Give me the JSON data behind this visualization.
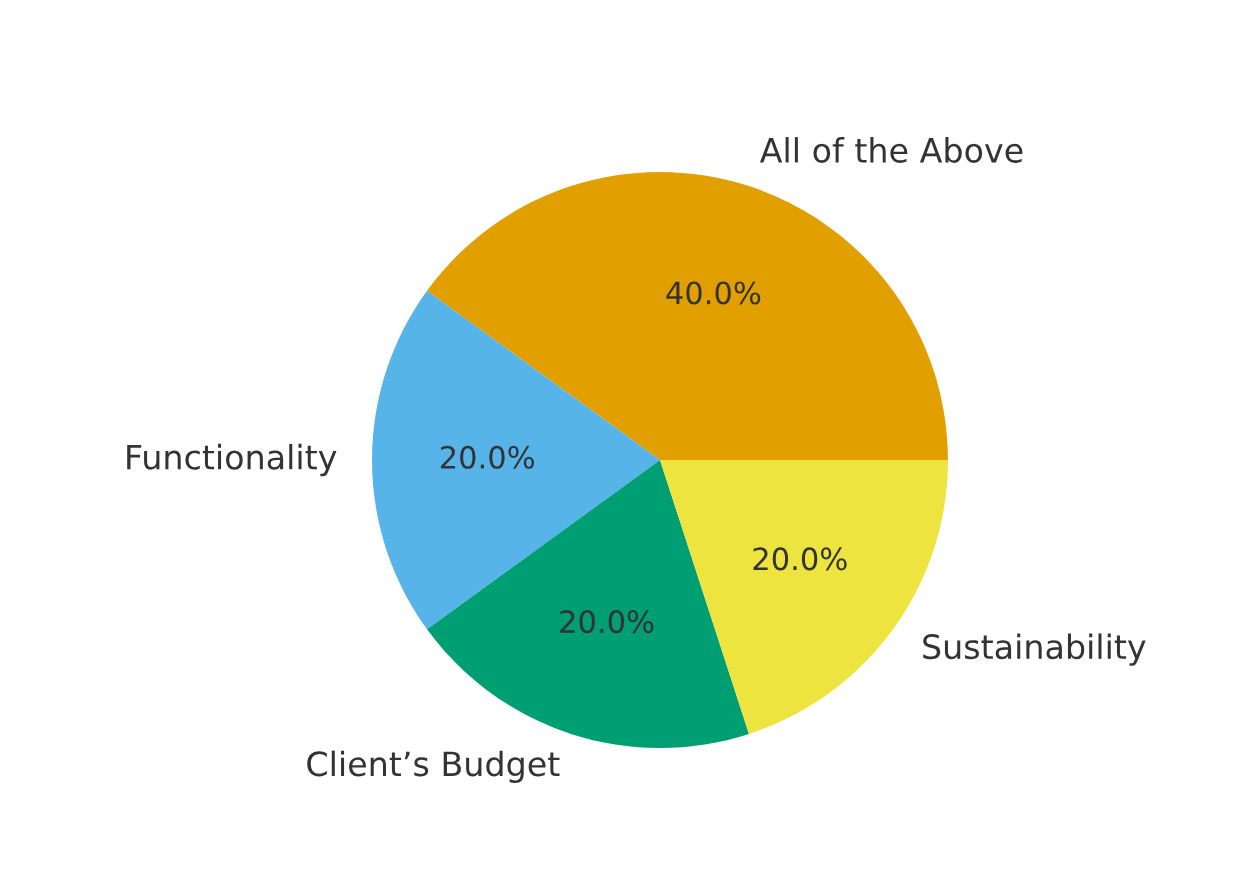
{
  "chart_data": {
    "type": "pie",
    "categories": [
      "All of the Above",
      "Functionality",
      "Client’s Budget",
      "Sustainability"
    ],
    "values": [
      40,
      20,
      20,
      20
    ],
    "colors": [
      "#e1a000",
      "#56b4e9",
      "#009e73",
      "#ede440"
    ],
    "value_labels": [
      "40.0%",
      "20.0%",
      "20.0%",
      "20.0%"
    ]
  }
}
